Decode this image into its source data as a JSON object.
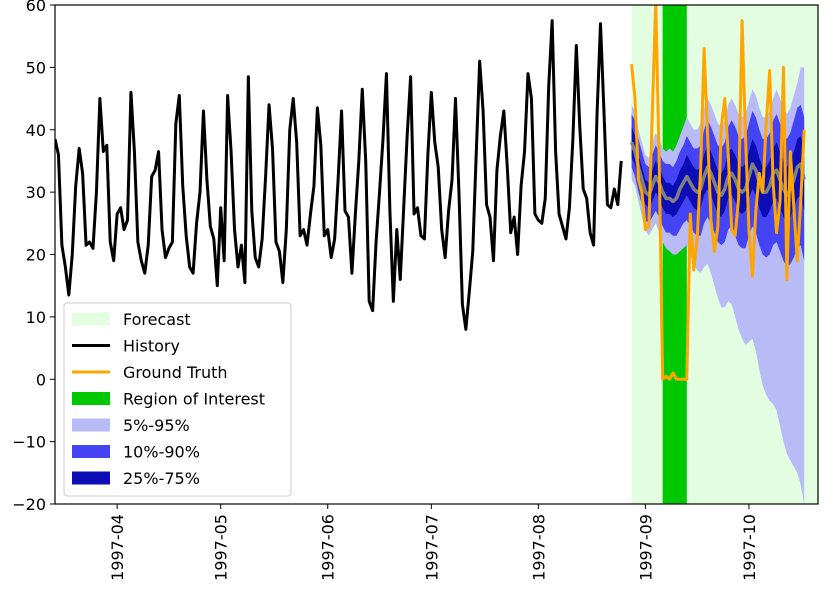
{
  "chart_data": {
    "type": "line",
    "title": "",
    "xlabel": "",
    "ylabel": "",
    "ylim": [
      -20,
      60
    ],
    "xlim": [
      "1997-03-14",
      "1997-10-21"
    ],
    "yticks": [
      -20,
      -10,
      0,
      10,
      20,
      30,
      40,
      50,
      60
    ],
    "xticks": [
      "1997-04",
      "1997-05",
      "1997-06",
      "1997-07",
      "1997-08",
      "1997-09",
      "1997-10"
    ],
    "grid": false,
    "legend_position": "lower-left",
    "legend": [
      "Forecast",
      "History",
      "Ground Truth",
      "Region of Interest",
      "5%-95%",
      "10%-90%",
      "25%-75%"
    ],
    "colors": {
      "forecast": "#e3fde1",
      "history": "#000000",
      "ground_truth": "#ffa500",
      "region_of_interest": "#00c800",
      "band_5_95": "#b9bbf7",
      "band_10_90": "#4444f5",
      "band_25_75": "#0d0db5",
      "median": "#808080"
    },
    "forecast_region": [
      "1997-08-28",
      "1997-10-21"
    ],
    "region_of_interest": [
      "1997-09-06",
      "1997-09-13"
    ],
    "history": {
      "start": "1997-03-14",
      "values": [
        38.5,
        36,
        21.5,
        18,
        13.5,
        20,
        31,
        37,
        33,
        21.5,
        22,
        21,
        30,
        45,
        36.5,
        37.5,
        22,
        19,
        26.5,
        27.5,
        24,
        25.5,
        46,
        36.5,
        22,
        19,
        17,
        21.5,
        32.5,
        33.5,
        36.5,
        24,
        19.5,
        21,
        22,
        41,
        45.5,
        31,
        23,
        18,
        17,
        25,
        30,
        43,
        32,
        24.5,
        22.5,
        15,
        27.5,
        19,
        45.5,
        36.5,
        24,
        18,
        21.5,
        15.5,
        48.5,
        27,
        19.5,
        18,
        22.5,
        32.5,
        44,
        37,
        22,
        20.5,
        15.5,
        24,
        40,
        45,
        38,
        23,
        24,
        21.5,
        26.5,
        31,
        43.5,
        37.5,
        23,
        24,
        19.5,
        22.5,
        32,
        43,
        27,
        26,
        17,
        26.5,
        35,
        46.5,
        35,
        12.5,
        11,
        22,
        30,
        38.5,
        49,
        27,
        12.5,
        24,
        16,
        27.5,
        39,
        48.5,
        26.5,
        27.5,
        23,
        22.5,
        36,
        46,
        38,
        34,
        24,
        19.5,
        27,
        32,
        45,
        30,
        12,
        8,
        14,
        20.5,
        36,
        51,
        43,
        28,
        26,
        19,
        33.5,
        39,
        43,
        34,
        23.5,
        26,
        20,
        31,
        36.5,
        49,
        45,
        26.5,
        25.5,
        25,
        29,
        47,
        57.5,
        36.5,
        26.5,
        24.5,
        22.5,
        27.5,
        38.5,
        53.5,
        40.5,
        30.5,
        29,
        23.5,
        21.5,
        42.5,
        57,
        43,
        28,
        27.5,
        30.5,
        28,
        35
      ]
    },
    "ground_truth": {
      "start": "1997-08-28",
      "values": [
        50.5,
        45,
        32,
        30,
        24,
        24.5,
        42.5,
        60.5,
        35,
        0,
        0.5,
        0,
        1,
        0,
        0,
        0,
        0,
        26.5,
        17.5,
        22.5,
        33.5,
        53,
        39.5,
        25.5,
        20.5,
        24.5,
        40.5,
        45,
        36,
        24,
        23,
        29,
        57.5,
        39,
        24,
        16.5,
        27,
        33,
        30,
        41,
        49.5,
        31.5,
        23.5,
        28.5,
        50,
        16,
        36.5,
        27.5,
        19,
        28.5,
        40
      ]
    },
    "median": {
      "start": "1997-08-28",
      "values": [
        38,
        36.5,
        34,
        32,
        30,
        29.5,
        31,
        32.5,
        31.5,
        30,
        29,
        29,
        28.5,
        29,
        30.5,
        31.5,
        32.5,
        31.5,
        30.5,
        30,
        30.5,
        32.5,
        34,
        33,
        31.5,
        30,
        29.5,
        30.5,
        32.5,
        33,
        32,
        30.5,
        30,
        30.5,
        32.5,
        34.5,
        33.5,
        31.5,
        30,
        30,
        31,
        33,
        33.5,
        32,
        30.5,
        29.5,
        30.5,
        32,
        34,
        34.5,
        32
      ]
    },
    "band_25_75": {
      "lower": [
        35.5,
        34.5,
        32,
        30,
        28,
        27.5,
        28.5,
        30,
        29,
        27.5,
        26.5,
        26.5,
        26,
        26.5,
        27.5,
        28.5,
        29.5,
        28.5,
        27.5,
        27,
        27.5,
        29.5,
        30.5,
        29.5,
        28,
        26.5,
        26,
        27,
        29,
        29.5,
        28.5,
        27,
        26.5,
        27,
        29,
        30.5,
        29.5,
        27.5,
        26,
        26,
        27,
        28.5,
        29,
        27.5,
        26,
        25,
        26,
        27.5,
        29,
        29.5,
        27
      ],
      "upper": [
        40.5,
        39,
        36,
        34,
        32,
        31.5,
        33.5,
        35,
        34,
        32.5,
        31.5,
        31.5,
        31,
        32,
        33.5,
        34.5,
        36,
        35,
        34,
        33.5,
        34,
        36,
        37.5,
        36.5,
        35,
        33.5,
        33,
        34,
        36.5,
        37,
        36,
        34.5,
        34,
        34.5,
        36.5,
        38.5,
        37.5,
        35.5,
        34,
        34,
        35,
        37,
        38,
        36.5,
        35,
        34,
        35,
        36.5,
        38.5,
        39,
        37
      ]
    },
    "band_10_90": {
      "lower": [
        34,
        32.5,
        30,
        28,
        25.5,
        25,
        26,
        27,
        26,
        24.5,
        23.5,
        23.5,
        23,
        23,
        24,
        25,
        25.5,
        24.5,
        23.5,
        23,
        23,
        25,
        26,
        25,
        23.5,
        22,
        21.5,
        22,
        24,
        24.5,
        23,
        21.5,
        21,
        21,
        23,
        24.5,
        23.5,
        21.5,
        20,
        19.5,
        20,
        21.5,
        22,
        20.5,
        19,
        18,
        18.5,
        19.5,
        21,
        21.5,
        19
      ],
      "upper": [
        42.5,
        41.5,
        38.5,
        36.5,
        34.5,
        34,
        36,
        37.5,
        36.5,
        35,
        34.5,
        34.5,
        34,
        35,
        36.5,
        37.5,
        39,
        38,
        37,
        37,
        37.5,
        40,
        41.5,
        40.5,
        39,
        37.5,
        37,
        38,
        40.5,
        41.5,
        40.5,
        39,
        38.5,
        39,
        41,
        43,
        42,
        40,
        38.5,
        38.5,
        39.5,
        41.5,
        42.5,
        41,
        39.5,
        38.5,
        39.5,
        41.5,
        43.5,
        44,
        42
      ]
    },
    "band_5_95": {
      "lower": [
        32,
        31,
        28.5,
        26,
        24,
        23,
        24,
        25,
        23.5,
        22,
        21,
        20.5,
        20,
        20,
        20.5,
        21,
        21.5,
        20,
        18.5,
        17.5,
        17,
        18,
        18.5,
        17,
        15,
        13,
        11.5,
        11.5,
        12.5,
        12,
        10,
        8,
        6.5,
        5.5,
        6,
        6.5,
        4.5,
        1.5,
        -1,
        -2.5,
        -3.5,
        -4,
        -5,
        -7.5,
        -10,
        -12,
        -13,
        -14,
        -15,
        -17,
        -20
      ],
      "upper": [
        44,
        43,
        40,
        38,
        36,
        35.5,
        38,
        39.5,
        38.5,
        37,
        36.5,
        37,
        36.5,
        37.5,
        39,
        40.5,
        42,
        41,
        40,
        40,
        41,
        43.5,
        45,
        44,
        42.5,
        41,
        40.5,
        41.5,
        44,
        45,
        44,
        42.5,
        42,
        42.5,
        44.5,
        46.5,
        45.5,
        43.5,
        42,
        42,
        43,
        45,
        46.5,
        45,
        43.5,
        42.5,
        43.5,
        45.5,
        47.5,
        50,
        50
      ]
    }
  }
}
